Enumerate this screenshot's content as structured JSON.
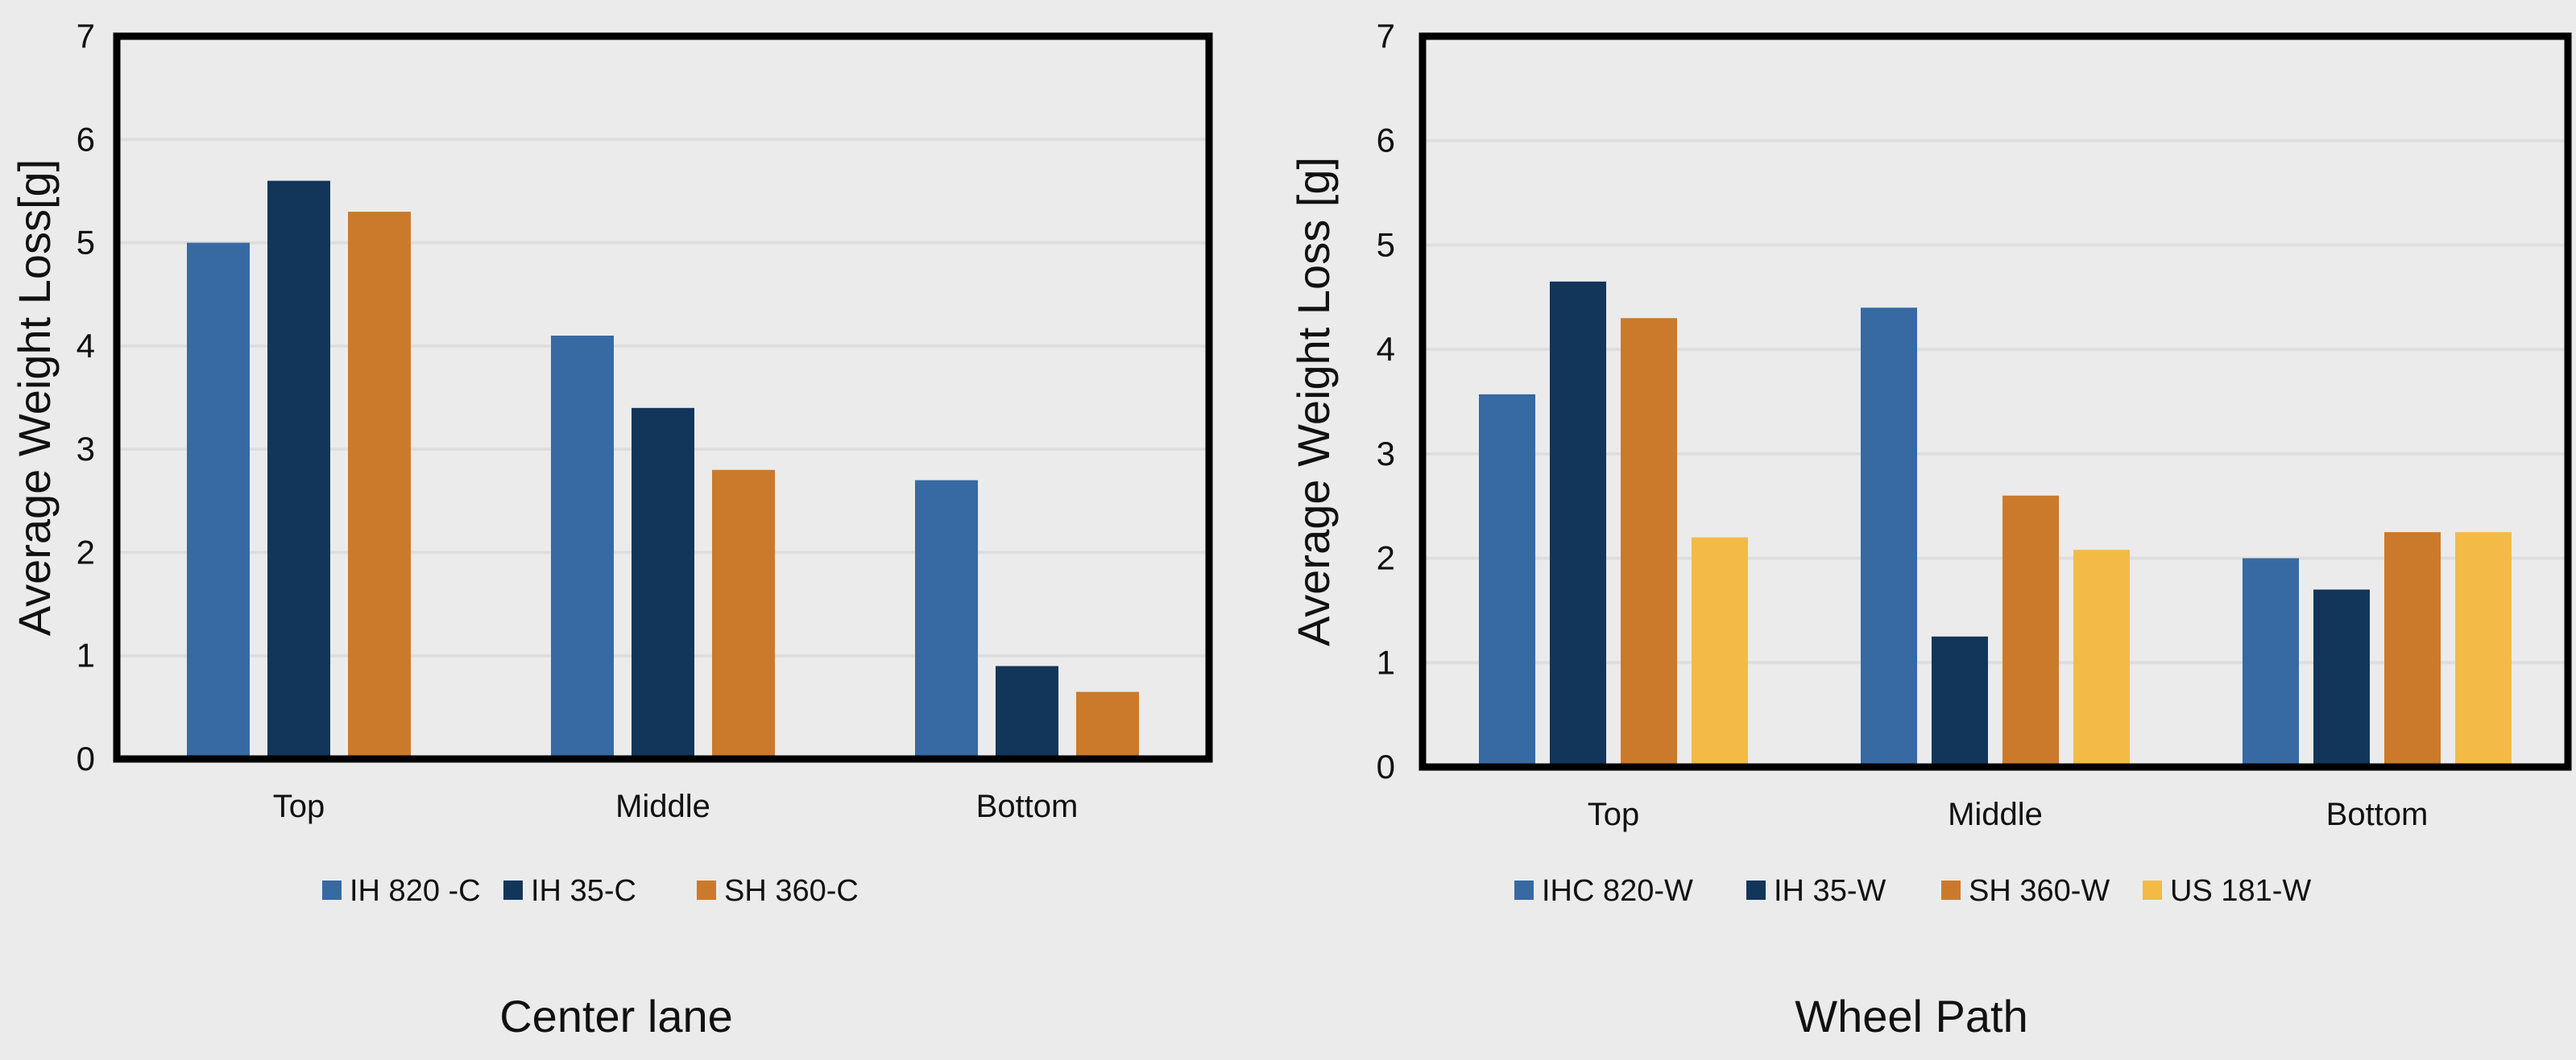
{
  "chart_data": [
    {
      "type": "bar",
      "title": "Center lane",
      "xlabel": "",
      "ylabel": "Average Weight Loss[g]",
      "ylim": [
        0,
        7
      ],
      "yticks": [
        "0",
        "1",
        "2",
        "3",
        "4",
        "5",
        "6",
        "7"
      ],
      "grid": true,
      "legend_position": "bottom",
      "categories": [
        "Top",
        "Middle",
        "Bottom"
      ],
      "series": [
        {
          "name": "IH 820 -C",
          "color": "#3769a3",
          "values": [
            5.0,
            4.1,
            2.7
          ]
        },
        {
          "name": "IH 35-C",
          "color": "#12365a",
          "values": [
            5.6,
            3.4,
            0.9
          ]
        },
        {
          "name": "SH 360-C",
          "color": "#cb7a2c",
          "values": [
            5.3,
            2.8,
            0.65
          ]
        }
      ]
    },
    {
      "type": "bar",
      "title": "Wheel Path",
      "xlabel": "",
      "ylabel": "Average Weight Loss [g]",
      "ylim": [
        0,
        7
      ],
      "yticks": [
        "0",
        "1",
        "2",
        "3",
        "4",
        "5",
        "6",
        "7"
      ],
      "grid": true,
      "legend_position": "bottom",
      "categories": [
        "Top",
        "Middle",
        "Bottom"
      ],
      "series": [
        {
          "name": "IHC 820-W",
          "color": "#3769a3",
          "values": [
            3.57,
            4.4,
            2.0
          ]
        },
        {
          "name": "IH 35-W",
          "color": "#12365a",
          "values": [
            4.65,
            1.25,
            1.7
          ]
        },
        {
          "name": "SH 360-W",
          "color": "#cb7a2c",
          "values": [
            4.3,
            2.6,
            2.25
          ]
        },
        {
          "name": "US 181-W",
          "color": "#f3bb45",
          "values": [
            2.2,
            2.08,
            2.25
          ]
        }
      ]
    }
  ]
}
